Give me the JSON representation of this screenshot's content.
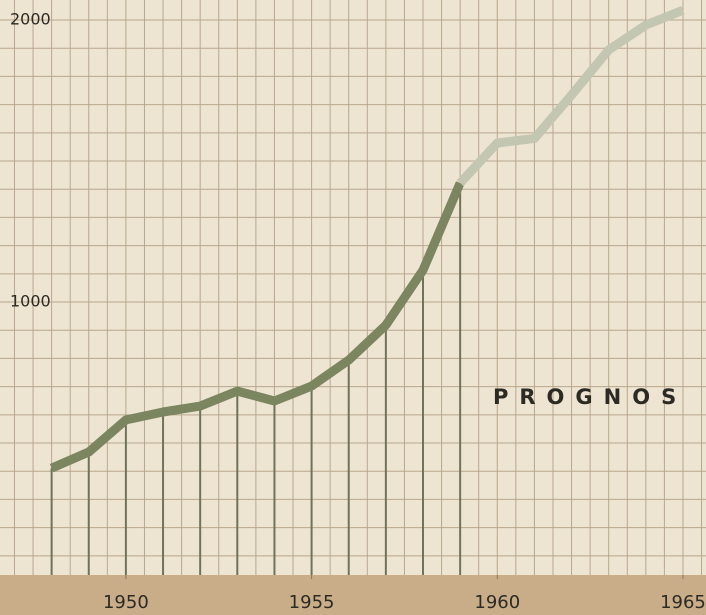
{
  "chart_data": {
    "type": "line",
    "annotations": [
      "PROGNOS"
    ],
    "series": [
      {
        "color": "#7b8560",
        "x": [
          1948,
          1949,
          1950,
          1951,
          1952,
          1953,
          1954,
          1955,
          1956,
          1957,
          1958,
          1959
        ],
        "values": [
          411,
          468,
          582,
          610,
          631,
          684,
          649,
          702,
          794,
          918,
          1113,
          1422
        ]
      },
      {
        "color": "#c3c6b1",
        "x": [
          1959,
          1960,
          1961,
          1962,
          1963,
          1964,
          1965
        ],
        "values": [
          1422,
          1564,
          1580,
          1734,
          1894,
          1982,
          2035
        ]
      }
    ],
    "xlim": [
      1946.61,
      1965.62
    ],
    "xticks": [
      1950,
      1955,
      1960,
      1965
    ],
    "ylim": [
      32,
      2071
    ],
    "yticks": [
      1000,
      2000
    ],
    "xgrid": [
      1947,
      1947.5,
      1948,
      1948.5,
      1949,
      1949.5,
      1950,
      1950.5,
      1951,
      1951.5,
      1952,
      1952.5,
      1953,
      1953.5,
      1954,
      1954.5,
      1955,
      1955.5,
      1956,
      1956.5,
      1957,
      1957.5,
      1958,
      1958.5,
      1959,
      1959.5,
      1960,
      1960.5,
      1961,
      1961.5,
      1962,
      1962.5,
      1963,
      1963.5,
      1964,
      1964.5,
      1965,
      1965.5
    ],
    "ygrid": [
      100,
      200,
      300,
      400,
      500,
      600,
      700,
      800,
      900,
      1000,
      1100,
      1200,
      1300,
      1400,
      1500,
      1600,
      1700,
      1800,
      1900,
      2000
    ],
    "grid": true
  }
}
